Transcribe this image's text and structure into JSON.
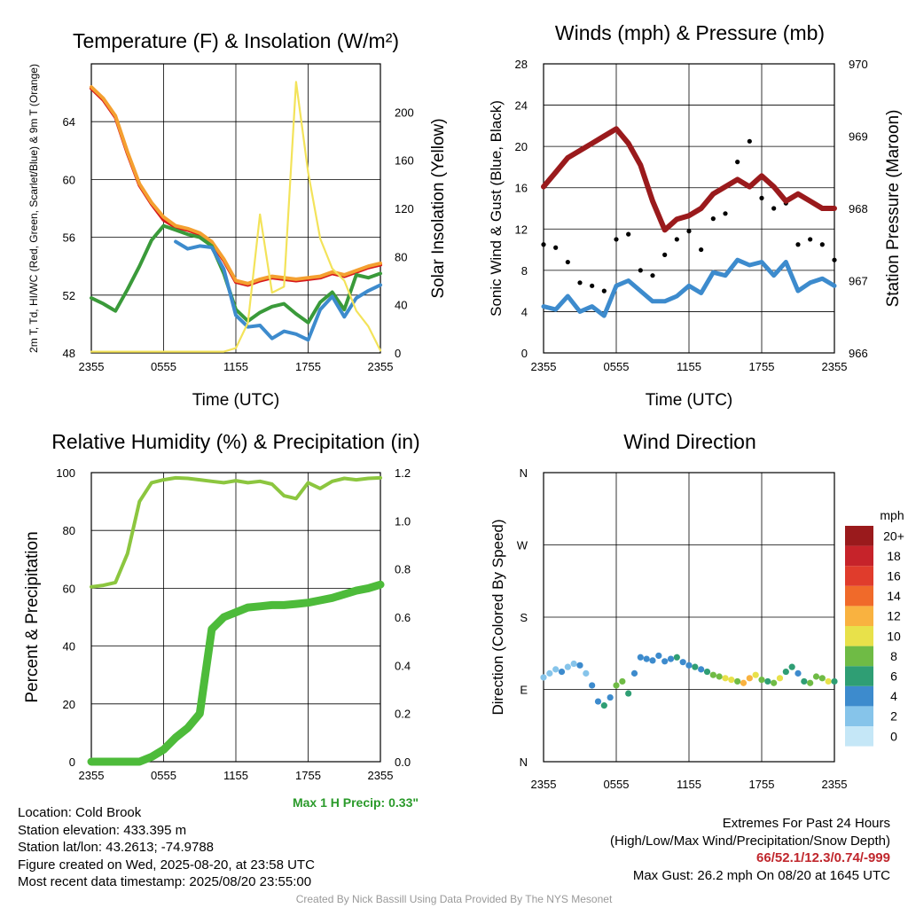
{
  "chart_data": [
    {
      "type": "line",
      "title": "Temperature (F) & Insolation (W/m²)",
      "xlabel": "Time (UTC)",
      "ylabel": "2m T, Td, HI/WC (Red, Green, Scarlet/Blue) & 9m T (Orange)",
      "y2label": "Solar Insolation (Yellow)",
      "categories": [
        "2355",
        "0555",
        "1155",
        "1755",
        "2355"
      ],
      "ylim": [
        48,
        68
      ],
      "yticks": [
        48,
        52,
        56,
        60,
        64
      ],
      "y2lim": [
        0,
        240
      ],
      "y2ticks": [
        0,
        40,
        80,
        120,
        160,
        200
      ],
      "grid": true,
      "x": [
        0,
        1,
        2,
        3,
        4,
        5,
        6,
        7,
        8,
        9,
        10,
        11,
        12,
        13,
        14,
        15,
        16,
        17,
        18,
        19,
        20,
        21,
        22,
        23,
        24
      ],
      "series": [
        {
          "color": "#d7191c",
          "axis": "left",
          "values": [
            66.3,
            65.5,
            64.3,
            61.8,
            59.6,
            58.3,
            57.2,
            56.7,
            56.5,
            56.2,
            55.6,
            54.4,
            52.9,
            52.7,
            53.0,
            53.2,
            53.1,
            53.0,
            53.1,
            53.2,
            53.5,
            53.3,
            53.6,
            53.9,
            54.1
          ]
        },
        {
          "color": "#f4a030",
          "axis": "left",
          "values": [
            66.4,
            65.6,
            64.4,
            61.9,
            59.7,
            58.4,
            57.4,
            56.8,
            56.6,
            56.3,
            55.7,
            54.5,
            53.0,
            52.8,
            53.1,
            53.3,
            53.2,
            53.1,
            53.2,
            53.3,
            53.6,
            53.4,
            53.7,
            54.0,
            54.2
          ]
        },
        {
          "color": "#3a9a3a",
          "axis": "left",
          "values": [
            51.8,
            51.4,
            50.9,
            52.4,
            54.0,
            55.8,
            56.8,
            56.5,
            56.2,
            56.0,
            55.4,
            53.5,
            51.0,
            50.2,
            50.8,
            51.2,
            51.4,
            50.7,
            50.1,
            51.5,
            52.2,
            51.0,
            53.4,
            53.2,
            53.5
          ]
        },
        {
          "color": "#3d8bcd",
          "axis": "left",
          "values": [
            null,
            null,
            null,
            null,
            null,
            null,
            null,
            55.7,
            55.2,
            55.4,
            55.3,
            53.8,
            50.6,
            49.8,
            49.9,
            49.0,
            49.5,
            49.3,
            48.9,
            51.0,
            51.9,
            50.5,
            51.8,
            52.3,
            52.7
          ]
        },
        {
          "color": "#f3e35a",
          "axis": "right",
          "values": [
            1,
            1,
            1,
            1,
            1,
            1,
            1,
            1,
            1,
            1,
            1,
            1,
            4,
            25,
            115,
            50,
            55,
            225,
            150,
            95,
            70,
            60,
            35,
            22,
            2
          ]
        }
      ]
    },
    {
      "type": "scatter",
      "title": "Winds (mph) & Pressure (mb)",
      "xlabel": "Time (UTC)",
      "ylabel": "Sonic Wind & Gust (Blue, Black)",
      "y2label": "Station Pressure (Maroon)",
      "categories": [
        "2355",
        "0555",
        "1155",
        "1755",
        "2355"
      ],
      "ylim": [
        0,
        28
      ],
      "yticks": [
        0,
        4,
        8,
        12,
        16,
        20,
        24,
        28
      ],
      "y2lim": [
        966,
        970
      ],
      "y2ticks": [
        966,
        967,
        968,
        969,
        970
      ],
      "grid": true,
      "x": [
        0,
        1,
        2,
        3,
        4,
        5,
        6,
        7,
        8,
        9,
        10,
        11,
        12,
        13,
        14,
        15,
        16,
        17,
        18,
        19,
        20,
        21,
        22,
        23,
        24
      ],
      "series": [
        {
          "color": "#3d8bcd",
          "style": "line",
          "axis": "left",
          "values": [
            4.5,
            4.2,
            5.5,
            4.0,
            4.5,
            3.6,
            6.5,
            7.0,
            6.0,
            5.0,
            5.0,
            5.5,
            6.5,
            5.8,
            7.8,
            7.5,
            9.0,
            8.5,
            8.8,
            7.5,
            8.8,
            6.0,
            6.8,
            7.2,
            6.5
          ]
        },
        {
          "color": "#000000",
          "style": "points",
          "axis": "left",
          "values": [
            10.5,
            10.2,
            8.8,
            6.8,
            6.5,
            6.0,
            11.0,
            11.5,
            8.0,
            7.5,
            9.5,
            11.0,
            11.8,
            10.0,
            13.0,
            13.5,
            18.5,
            20.5,
            15.0,
            14.0,
            14.5,
            10.5,
            11.0,
            10.5,
            9.0
          ]
        },
        {
          "color": "#9a1a1c",
          "style": "line",
          "axis": "right",
          "values": [
            968.3,
            968.5,
            968.7,
            968.8,
            968.9,
            969.0,
            969.1,
            968.9,
            968.6,
            968.1,
            967.7,
            967.85,
            967.9,
            968.0,
            968.2,
            968.3,
            968.4,
            968.3,
            968.45,
            968.3,
            968.1,
            968.2,
            968.1,
            968.0,
            968.0
          ]
        }
      ]
    },
    {
      "type": "line",
      "title": "Relative Humidity (%) & Precipitation (in)",
      "ylabel": "Percent & Precipitation",
      "categories": [
        "2355",
        "0555",
        "1155",
        "1755",
        "2355"
      ],
      "ylim": [
        0,
        100
      ],
      "yticks": [
        0,
        20,
        40,
        60,
        80,
        100
      ],
      "y2lim": [
        0,
        1.2
      ],
      "y2ticks": [
        0.0,
        0.2,
        0.4,
        0.6,
        0.8,
        1.0,
        1.2
      ],
      "grid": true,
      "annotation": "Max 1 H Precip: 0.33\"",
      "x": [
        0,
        1,
        2,
        3,
        4,
        5,
        6,
        7,
        8,
        9,
        10,
        11,
        12,
        13,
        14,
        15,
        16,
        17,
        18,
        19,
        20,
        21,
        22,
        23,
        24
      ],
      "series": [
        {
          "color": "#8cc63f",
          "axis": "left",
          "values": [
            60.5,
            61.0,
            62.0,
            72.0,
            90.0,
            96.5,
            97.5,
            98.2,
            98.0,
            97.5,
            97.0,
            96.5,
            97.2,
            96.5,
            97.0,
            96.0,
            92.0,
            91.0,
            96.5,
            94.5,
            97.0,
            98.0,
            97.5,
            98.0,
            98.2
          ]
        },
        {
          "color": "#4dbb3a",
          "style": "thick",
          "axis": "right",
          "values": [
            0.0,
            0.0,
            0.0,
            0.0,
            0.0,
            0.02,
            0.05,
            0.1,
            0.14,
            0.2,
            0.55,
            0.6,
            0.62,
            0.64,
            0.645,
            0.65,
            0.65,
            0.655,
            0.66,
            0.67,
            0.68,
            0.695,
            0.71,
            0.72,
            0.735
          ]
        }
      ]
    },
    {
      "type": "scatter",
      "title": "Wind Direction",
      "ylabel": "Direction (Colored By Speed)",
      "categories": [
        "2355",
        "0555",
        "1155",
        "1755",
        "2355"
      ],
      "yticklabels": [
        "N",
        "E",
        "S",
        "W",
        "N"
      ],
      "ylim": [
        0,
        360
      ],
      "grid": true,
      "legend_title": "mph",
      "legend_labels": [
        "0",
        "2",
        "4",
        "6",
        "8",
        "10",
        "12",
        "14",
        "16",
        "18",
        "20+"
      ],
      "legend_colors": [
        "#c5e7f7",
        "#86c4ea",
        "#3d8bcd",
        "#2f9e74",
        "#6fbb45",
        "#e8e14a",
        "#f9b240",
        "#f06a2a",
        "#e03c2c",
        "#c6232a",
        "#9a1a1c"
      ],
      "x": [
        0,
        0.5,
        1,
        1.5,
        2,
        2.5,
        3,
        3.5,
        4,
        4.5,
        5,
        5.5,
        6,
        6.5,
        7,
        7.5,
        8,
        8.5,
        9,
        9.5,
        10,
        10.5,
        11,
        11.5,
        12,
        12.5,
        13,
        13.5,
        14,
        14.5,
        15,
        15.5,
        16,
        16.5,
        17,
        17.5,
        18,
        18.5,
        19,
        19.5,
        20,
        20.5,
        21,
        21.5,
        22,
        22.5,
        23,
        23.5,
        24
      ],
      "values": [
        105,
        110,
        115,
        112,
        118,
        122,
        120,
        110,
        95,
        75,
        70,
        80,
        95,
        100,
        85,
        110,
        130,
        128,
        126,
        132,
        125,
        128,
        130,
        124,
        120,
        118,
        115,
        112,
        108,
        106,
        104,
        102,
        100,
        98,
        104,
        108,
        102,
        100,
        98,
        104,
        112,
        118,
        110,
        100,
        98,
        106,
        104,
        100,
        100
      ],
      "speeds": [
        2,
        2,
        2,
        3,
        1,
        2,
        3,
        2,
        4,
        4,
        5,
        3,
        7,
        8,
        6,
        4,
        3,
        4,
        4,
        3,
        4,
        4,
        5,
        3,
        4,
        5,
        4,
        6,
        7,
        8,
        10,
        9,
        8,
        11,
        12,
        9,
        8,
        6,
        7,
        10,
        5,
        6,
        4,
        6,
        7,
        8,
        7,
        9,
        6
      ]
    }
  ],
  "info_left": [
    "Location: Cold Brook",
    "Station elevation: 433.395 m",
    "Station lat/lon: 43.2613; -74.9788",
    "Figure created on Wed, 2025-08-20, at 23:58 UTC",
    "Most recent data timestamp: 2025/08/20 23:55:00"
  ],
  "info_right": {
    "heading": "Extremes For Past 24 Hours",
    "subheading": "(High/Low/Max Wind/Precipitation/Snow Depth)",
    "values": "66/52.1/12.3/0.74/-999",
    "max_gust": "Max Gust: 26.2 mph On 08/20 at 1645 UTC"
  },
  "credit": "Created By Nick Bassill Using Data Provided By The NYS Mesonet"
}
